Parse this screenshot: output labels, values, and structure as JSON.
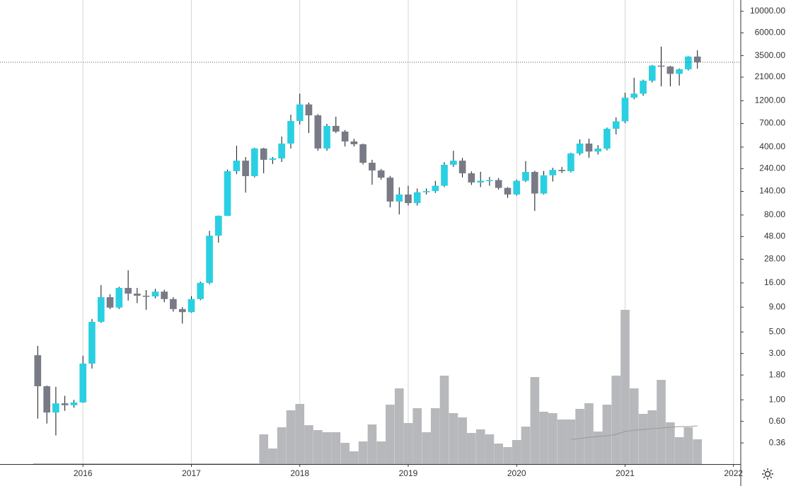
{
  "chart_data": {
    "type": "candlestick",
    "log_scale": true,
    "grid": true,
    "up_color": "#2ad0e2",
    "down_color": "#787b86",
    "volume_color": "#b7b8bb",
    "volume_ma_color": "#9a9a9a",
    "x": [
      2015.583,
      2015.667,
      2015.75,
      2015.833,
      2015.917,
      2016,
      2016.083,
      2016.167,
      2016.25,
      2016.333,
      2016.417,
      2016.5,
      2016.583,
      2016.667,
      2016.75,
      2016.833,
      2016.917,
      2017,
      2017.083,
      2017.167,
      2017.25,
      2017.333,
      2017.417,
      2017.5,
      2017.583,
      2017.667,
      2017.75,
      2017.833,
      2017.917,
      2018,
      2018.083,
      2018.167,
      2018.25,
      2018.333,
      2018.417,
      2018.5,
      2018.583,
      2018.667,
      2018.75,
      2018.833,
      2018.917,
      2019,
      2019.083,
      2019.167,
      2019.25,
      2019.333,
      2019.417,
      2019.5,
      2019.583,
      2019.667,
      2019.75,
      2019.833,
      2019.917,
      2020,
      2020.083,
      2020.167,
      2020.25,
      2020.333,
      2020.417,
      2020.5,
      2020.583,
      2020.667,
      2020.75,
      2020.833,
      2020.917,
      2021,
      2021.083,
      2021.167,
      2021.25,
      2021.333,
      2021.417,
      2021.5,
      2021.583,
      2021.667
    ],
    "open": [
      2.88,
      1.38,
      0.74,
      0.92,
      0.88,
      0.94,
      2.36,
      6.35,
      11.4,
      8.9,
      14.2,
      12.4,
      11.8,
      11.6,
      13.0,
      10.9,
      8.6,
      8.0,
      10.9,
      16.0,
      49,
      78.5,
      226,
      290,
      201,
      387,
      296,
      306,
      435,
      743,
      1100,
      849,
      387,
      661,
      578,
      457,
      428,
      276,
      230,
      194,
      110,
      130,
      106,
      137,
      141,
      160,
      263,
      290,
      215,
      173,
      180,
      183,
      152,
      130,
      180,
      222,
      133,
      205,
      233,
      226,
      344,
      435,
      360,
      386,
      618,
      737,
      1290,
      1420,
      1930,
      2760,
      2700,
      2270,
      2530,
      3420
    ],
    "high": [
      3.59,
      1.4,
      1.36,
      1.1,
      1.0,
      2.84,
      6.8,
      15.2,
      12.2,
      14.6,
      21.6,
      14.2,
      13.5,
      13.9,
      13.6,
      11.4,
      9.0,
      11.7,
      16.5,
      55,
      79,
      234,
      413,
      316,
      394,
      394,
      316,
      514,
      864,
      1420,
      1150,
      873,
      695,
      822,
      600,
      487,
      435,
      296,
      238,
      202,
      154,
      160,
      150,
      150,
      180,
      280,
      367,
      310,
      225,
      223,
      197,
      192,
      155,
      185,
      287,
      228,
      227,
      245,
      250,
      350,
      480,
      488,
      420,
      635,
      808,
      1452,
      2070,
      1980,
      2800,
      4330,
      2750,
      2580,
      3460,
      3970
    ],
    "low": [
      0.64,
      0.57,
      0.43,
      0.77,
      0.83,
      0.93,
      2.1,
      6.2,
      8.6,
      8.6,
      10.5,
      9.9,
      8.45,
      11.1,
      10.1,
      8.1,
      6.1,
      7.9,
      10.6,
      15.5,
      41.5,
      78,
      211,
      136,
      195,
      215,
      268,
      281,
      387,
      684,
      559,
      367,
      367,
      559,
      406,
      406,
      265,
      164,
      185,
      96,
      81,
      100,
      100,
      130,
      135,
      155,
      250,
      195,
      163,
      155,
      160,
      146,
      120,
      127,
      175,
      88,
      130,
      177,
      216,
      220,
      330,
      310,
      335,
      370,
      541,
      706,
      1240,
      1350,
      1850,
      1690,
      1690,
      1720,
      2460,
      2570
    ],
    "close": [
      1.38,
      0.74,
      0.92,
      0.88,
      0.94,
      2.36,
      6.35,
      11.4,
      8.9,
      14.2,
      12.4,
      11.8,
      11.6,
      13.0,
      10.9,
      8.6,
      8.0,
      10.9,
      16.0,
      49,
      78.5,
      226,
      290,
      201,
      387,
      296,
      306,
      435,
      743,
      1100,
      849,
      387,
      661,
      578,
      457,
      428,
      276,
      230,
      194,
      110,
      130,
      106,
      137,
      141,
      160,
      263,
      290,
      215,
      173,
      180,
      183,
      152,
      130,
      180,
      222,
      133,
      205,
      233,
      226,
      344,
      435,
      360,
      386,
      618,
      737,
      1290,
      1420,
      1930,
      2760,
      2700,
      2270,
      2530,
      3420,
      2990
    ],
    "volume": [
      1,
      1,
      1,
      1,
      1,
      1,
      1,
      1,
      1,
      1,
      1,
      1,
      1,
      1,
      1,
      1,
      1,
      1,
      1,
      1,
      1,
      1,
      1,
      1,
      1,
      42,
      22,
      52,
      76,
      85,
      55,
      48,
      45,
      45,
      30,
      18,
      32,
      56,
      32,
      84,
      107,
      58,
      79,
      45,
      79,
      125,
      72,
      66,
      44,
      49,
      42,
      29,
      24,
      34,
      53,
      123,
      74,
      72,
      63,
      63,
      78,
      86,
      46,
      84,
      125,
      218,
      107,
      71,
      76,
      119,
      59,
      38,
      52,
      35
    ],
    "volume_ma": [
      null,
      null,
      null,
      null,
      null,
      null,
      null,
      null,
      null,
      null,
      null,
      null,
      null,
      null,
      null,
      null,
      null,
      null,
      null,
      null,
      null,
      null,
      null,
      null,
      null,
      null,
      null,
      null,
      null,
      null,
      null,
      null,
      null,
      null,
      null,
      null,
      null,
      null,
      null,
      null,
      null,
      null,
      null,
      null,
      null,
      null,
      null,
      null,
      null,
      null,
      null,
      null,
      null,
      null,
      null,
      null,
      null,
      null,
      null,
      35,
      36,
      38,
      39,
      40,
      42,
      46,
      48,
      49,
      50,
      51,
      52,
      53,
      53,
      54
    ],
    "volume_ylim": [
      0,
      640
    ],
    "xlim": [
      2015.235,
      2022.067
    ],
    "xticks": [
      2016,
      2017,
      2018,
      2019,
      2020,
      2021,
      2022
    ],
    "ylim": [
      0.218,
      13080
    ],
    "yticks": [
      {
        "value": 10000,
        "label": "10000.00"
      },
      {
        "value": 6000,
        "label": "6000.00"
      },
      {
        "value": 3500,
        "label": "3500.00"
      },
      {
        "value": 2100,
        "label": "2100.00"
      },
      {
        "value": 1200,
        "label": "1200.00"
      },
      {
        "value": 700,
        "label": "700.00"
      },
      {
        "value": 400,
        "label": "400.00"
      },
      {
        "value": 240,
        "label": "240.00"
      },
      {
        "value": 140,
        "label": "140.00"
      },
      {
        "value": 80,
        "label": "80.00"
      },
      {
        "value": 48,
        "label": "48.00"
      },
      {
        "value": 28,
        "label": "28.00"
      },
      {
        "value": 16,
        "label": "16.00"
      },
      {
        "value": 9,
        "label": "9.00"
      },
      {
        "value": 5,
        "label": "5.00"
      },
      {
        "value": 3,
        "label": "3.00"
      },
      {
        "value": 1.8,
        "label": "1.80"
      },
      {
        "value": 1,
        "label": "1.00"
      },
      {
        "value": 0.6,
        "label": "0.60"
      },
      {
        "value": 0.36,
        "label": "0.36"
      }
    ]
  }
}
